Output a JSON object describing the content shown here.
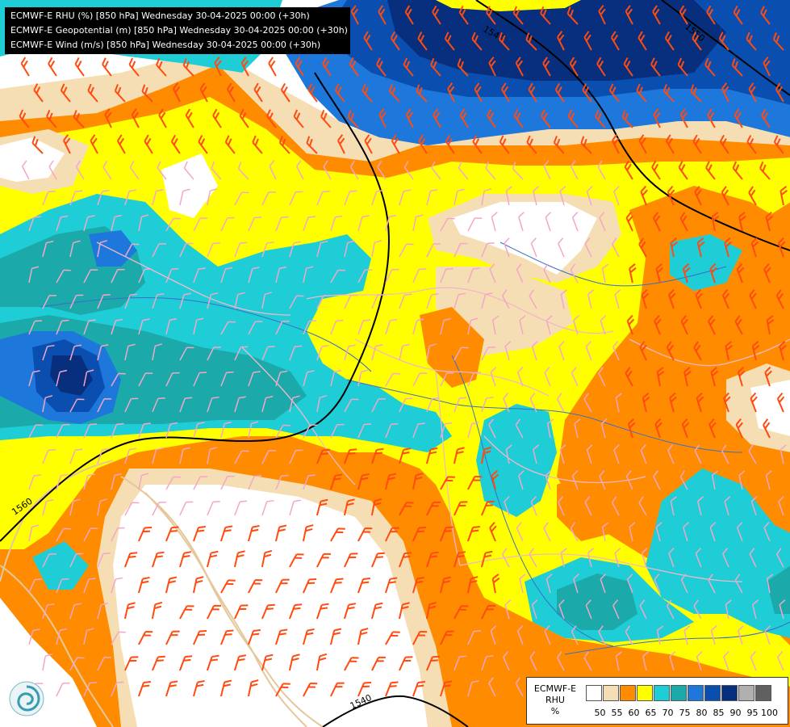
{
  "header": {
    "line1": "ECMWF-E RHU (%) [850 hPa] Wednesday 30-04-2025 00:00 (+30h)",
    "line2": "ECMWF-E Geopotential (m) [850 hPa] Wednesday 30-04-2025 00:00 (+30h)",
    "line3": "ECMWF-E Wind (m/s) [850 hPa] Wednesday 30-04-2025 00:00 (+30h)"
  },
  "contour_labels": [
    "1540",
    "1550",
    "1560",
    "1540"
  ],
  "legend": {
    "title_line1": "ECMWF-E",
    "title_line2": "RHU",
    "title_line3": "%",
    "bins": [
      {
        "label": "50",
        "color": "#ffffff"
      },
      {
        "label": "55",
        "color": "#f5deb3"
      },
      {
        "label": "60",
        "color": "#ff8c00"
      },
      {
        "label": "65",
        "color": "#ffff00"
      },
      {
        "label": "70",
        "color": "#1ecdd5"
      },
      {
        "label": "75",
        "color": "#1ba9a9"
      },
      {
        "label": "80",
        "color": "#1e78dc"
      },
      {
        "label": "85",
        "color": "#0a4fb0"
      },
      {
        "label": "90",
        "color": "#072f7d"
      },
      {
        "label": "95",
        "color": "#b0b0b0"
      },
      {
        "label": "100",
        "color": "#606060"
      }
    ]
  },
  "colors": {
    "rhu_50": "#ffffff",
    "rhu_55": "#f5deb3",
    "rhu_60": "#ff8c00",
    "rhu_65": "#ffff00",
    "rhu_70": "#1ecdd5",
    "rhu_75": "#1ba9a9",
    "rhu_80": "#1e78dc",
    "rhu_85": "#0a4fb0",
    "rhu_90": "#072f7d",
    "geopotential_contour": "#000000",
    "coastline": "#e6c79a",
    "borders": "#f0b8c8",
    "rivers": "#3c6ec8",
    "barb_light": "#f4a6c8",
    "barb_strong": "#ff4a10"
  },
  "icons": {
    "logo": "ecmwf-swirl-logo"
  }
}
